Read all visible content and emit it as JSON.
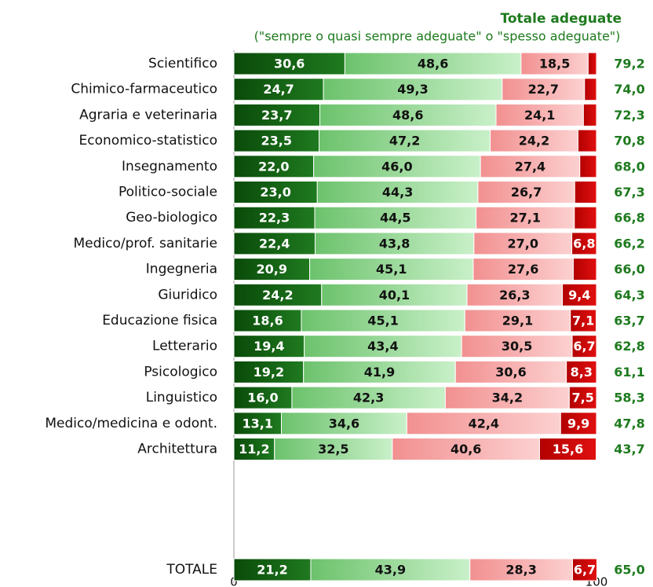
{
  "chart_data": {
    "type": "stacked_bar_horizontal",
    "header": "Totale adeguate",
    "subheader": "(\"sempre o quasi sempre adeguate\" o \"spesso adeguate\")",
    "categories": [
      "Scientifico",
      "Chimico-farmaceutico",
      "Agraria e veterinaria",
      "Economico-statistico",
      "Insegnamento",
      "Politico-sociale",
      "Geo-biologico",
      "Medico/prof. sanitarie",
      "Ingegneria",
      "Giuridico",
      "Educazione fisica",
      "Letterario",
      "Psicologico",
      "Linguistico",
      "Medico/medicina e odont.",
      "Architettura",
      "TOTALE"
    ],
    "series": [
      {
        "color": "#0f560f",
        "text_color": "#ffffff",
        "values": [
          30.6,
          24.7,
          23.7,
          23.5,
          22.0,
          23.0,
          22.3,
          22.4,
          20.9,
          24.2,
          18.6,
          19.4,
          19.2,
          16.0,
          13.1,
          11.2,
          21.2
        ],
        "value_labels": [
          "30,6",
          "24,7",
          "23,7",
          "23,5",
          "22,0",
          "23,0",
          "22,3",
          "22,4",
          "20,9",
          "24,2",
          "18,6",
          "19,4",
          "19,2",
          "16,0",
          "13,1",
          "11,2",
          "21,2"
        ]
      },
      {
        "color": "#8fd88f",
        "text_color": "#111111",
        "values": [
          48.6,
          49.3,
          48.6,
          47.2,
          46.0,
          44.3,
          44.5,
          43.8,
          45.1,
          40.1,
          45.1,
          43.4,
          41.9,
          42.3,
          34.6,
          32.5,
          43.9
        ],
        "value_labels": [
          "48,6",
          "49,3",
          "48,6",
          "47,2",
          "46,0",
          "44,3",
          "44,5",
          "43,8",
          "45,1",
          "40,1",
          "45,1",
          "43,4",
          "41,9",
          "42,3",
          "34,6",
          "32,5",
          "43,9"
        ]
      },
      {
        "color": "#f5a3a3",
        "text_color": "#111111",
        "values": [
          18.5,
          22.7,
          24.1,
          24.2,
          27.4,
          26.7,
          27.1,
          27.0,
          27.6,
          26.3,
          29.1,
          30.5,
          30.6,
          34.2,
          42.4,
          40.6,
          28.3
        ],
        "value_labels": [
          "18,5",
          "22,7",
          "24,1",
          "24,2",
          "27,4",
          "26,7",
          "27,1",
          "27,0",
          "27,6",
          "26,3",
          "29,1",
          "30,5",
          "30,6",
          "34,2",
          "42,4",
          "40,6",
          "28,3"
        ]
      },
      {
        "color": "#cc0000",
        "text_color": "#ffffff",
        "values": [
          2.3,
          3.3,
          3.6,
          5.1,
          4.6,
          6.0,
          6.1,
          6.8,
          6.4,
          9.4,
          7.1,
          6.7,
          8.3,
          7.5,
          9.9,
          15.6,
          6.7
        ],
        "value_labels": [
          null,
          null,
          null,
          null,
          null,
          null,
          null,
          "6,8",
          null,
          "9,4",
          "7,1",
          "6,7",
          "8,3",
          "7,5",
          "9,9",
          "15,6",
          "6,7"
        ]
      }
    ],
    "totals": {
      "color": "#1e7a1e",
      "values": [
        79.2,
        74.0,
        72.3,
        70.8,
        68.0,
        67.3,
        66.8,
        66.2,
        66.0,
        64.3,
        63.7,
        62.8,
        61.1,
        58.3,
        47.8,
        43.7,
        65.0
      ],
      "value_labels": [
        "79,2",
        "74,0",
        "72,3",
        "70,8",
        "68,0",
        "67,3",
        "66,8",
        "66,2",
        "66,0",
        "64,3",
        "63,7",
        "62,8",
        "61,1",
        "58,3",
        "47,8",
        "43,7",
        "65,0"
      ]
    },
    "xlim": [
      0,
      100
    ],
    "xticks": [
      0,
      100
    ]
  }
}
